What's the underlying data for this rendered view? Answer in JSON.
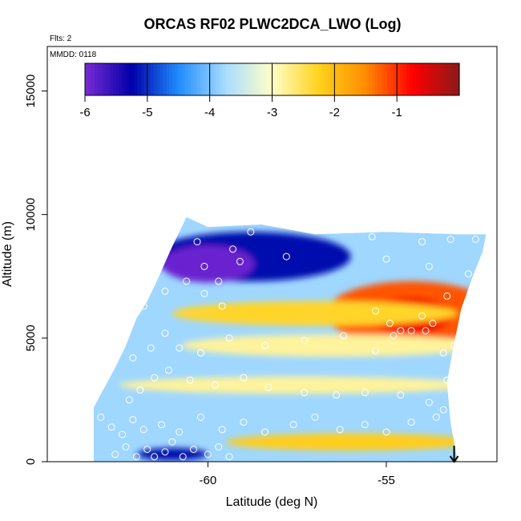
{
  "chart_data": {
    "type": "heatmap",
    "title": "ORCAS RF02 PLWC2DCA_LWO (Log)",
    "annotations": {
      "flights": "Flts: 2",
      "date": "MMDD: 0118"
    },
    "xlabel": "Latitude (deg N)",
    "ylabel": "Altitude (m)",
    "xlim": [
      -64.5,
      -51.9
    ],
    "ylim": [
      0,
      16800
    ],
    "x_ticks": [
      -60,
      -55
    ],
    "x_tick_labels": [
      "-60",
      "-55"
    ],
    "y_ticks": [
      0,
      5000,
      10000,
      15000
    ],
    "y_tick_labels": [
      "0",
      "5000",
      "10000",
      "15000"
    ],
    "colorbar": {
      "range": [
        -6,
        0
      ],
      "ticks": [
        -6,
        -5,
        -4,
        -3,
        -2,
        -1
      ],
      "tick_labels": [
        "-6",
        "-5",
        "-4",
        "-3",
        "-2",
        "-1"
      ],
      "colors": [
        "#7B2AD6",
        "#0000A8",
        "#1F8CFF",
        "#A8DCFF",
        "#FFFFC8",
        "#FFD21E",
        "#FF8C00",
        "#FF0000",
        "#8B1A1A"
      ]
    },
    "data_envelope": {
      "bottom_altitude": 0,
      "top_edge": [
        {
          "lat": -63.2,
          "alt": 2200
        },
        {
          "lat": -62.6,
          "alt": 3800
        },
        {
          "lat": -62.3,
          "alt": 4700
        },
        {
          "lat": -62.0,
          "alt": 5800
        },
        {
          "lat": -61.7,
          "alt": 6500
        },
        {
          "lat": -61.4,
          "alt": 7400
        },
        {
          "lat": -61.0,
          "alt": 8700
        },
        {
          "lat": -60.6,
          "alt": 9900
        },
        {
          "lat": -60.0,
          "alt": 9500
        },
        {
          "lat": -58.5,
          "alt": 9600
        },
        {
          "lat": -57.0,
          "alt": 9200
        },
        {
          "lat": -55.0,
          "alt": 9300
        },
        {
          "lat": -53.0,
          "alt": 9200
        },
        {
          "lat": -52.2,
          "alt": 9200
        },
        {
          "lat": -52.3,
          "alt": 8500
        },
        {
          "lat": -52.6,
          "alt": 7400
        },
        {
          "lat": -52.9,
          "alt": 6200
        },
        {
          "lat": -53.1,
          "alt": 4800
        },
        {
          "lat": -53.3,
          "alt": 3200
        },
        {
          "lat": -53.2,
          "alt": 1600
        },
        {
          "lat": -53.0,
          "alt": 0
        }
      ]
    },
    "features": [
      {
        "name": "dry upper band",
        "lat": -58.8,
        "alt": 8300,
        "value": -5.2,
        "width_deg": 5.6,
        "height_m": 2000
      },
      {
        "name": "driest core",
        "lat": -60.0,
        "alt": 8000,
        "value": -5.9,
        "width_deg": 2.6,
        "height_m": 1500
      },
      {
        "name": "moist layer",
        "lat": -54.3,
        "alt": 6000,
        "value": -1.2,
        "width_deg": 4.8,
        "height_m": 2600
      },
      {
        "name": "moist core",
        "lat": -54.3,
        "alt": 5900,
        "value": -0.7,
        "width_deg": 2.2,
        "height_m": 1500
      },
      {
        "name": "tongue",
        "lat": -57.0,
        "alt": 6000,
        "value": -2.3,
        "width_deg": 8.0,
        "height_m": 1000
      },
      {
        "name": "mid band",
        "lat": -56.5,
        "alt": 4700,
        "value": -2.8,
        "width_deg": 8.5,
        "height_m": 900
      },
      {
        "name": "lower band",
        "lat": -57.5,
        "alt": 3100,
        "value": -2.8,
        "width_deg": 10.0,
        "height_m": 700
      },
      {
        "name": "boundary layer",
        "lat": -56.0,
        "alt": 800,
        "value": -2.2,
        "width_deg": 7.0,
        "height_m": 700
      },
      {
        "name": "surface dry",
        "lat": -61.0,
        "alt": 300,
        "value": -5.2,
        "width_deg": 2.0,
        "height_m": 500
      }
    ],
    "sample_points": [
      [
        -62.6,
        300
      ],
      [
        -62.3,
        600
      ],
      [
        -62.0,
        200
      ],
      [
        -61.7,
        500
      ],
      [
        -61.5,
        200
      ],
      [
        -61.2,
        400
      ],
      [
        -61.0,
        800
      ],
      [
        -60.7,
        200
      ],
      [
        -60.4,
        500
      ],
      [
        -60.0,
        300
      ],
      [
        -59.7,
        600
      ],
      [
        -59.4,
        200
      ],
      [
        -63.0,
        1800
      ],
      [
        -62.7,
        1400
      ],
      [
        -62.4,
        1100
      ],
      [
        -62.1,
        1700
      ],
      [
        -61.8,
        1300
      ],
      [
        -61.3,
        1500
      ],
      [
        -60.8,
        1200
      ],
      [
        -60.2,
        1800
      ],
      [
        -59.6,
        1300
      ],
      [
        -59.0,
        1600
      ],
      [
        -58.4,
        1200
      ],
      [
        -57.6,
        1500
      ],
      [
        -57.0,
        1800
      ],
      [
        -56.3,
        1300
      ],
      [
        -55.6,
        1500
      ],
      [
        -55.0,
        1200
      ],
      [
        -54.3,
        1600
      ],
      [
        -53.6,
        1800
      ],
      [
        -62.2,
        2500
      ],
      [
        -61.9,
        2900
      ],
      [
        -61.5,
        3400
      ],
      [
        -61.1,
        3700
      ],
      [
        -60.5,
        3300
      ],
      [
        -59.8,
        3100
      ],
      [
        -59.0,
        3400
      ],
      [
        -58.3,
        3000
      ],
      [
        -57.3,
        2800
      ],
      [
        -56.4,
        2700
      ],
      [
        -55.6,
        2800
      ],
      [
        -54.6,
        2700
      ],
      [
        -53.8,
        2400
      ],
      [
        -53.3,
        3300
      ],
      [
        -53.4,
        2100
      ],
      [
        -62.1,
        4200
      ],
      [
        -61.6,
        4600
      ],
      [
        -61.2,
        5200
      ],
      [
        -60.8,
        4600
      ],
      [
        -60.2,
        4400
      ],
      [
        -59.4,
        5000
      ],
      [
        -58.4,
        4700
      ],
      [
        -57.3,
        4900
      ],
      [
        -56.2,
        5100
      ],
      [
        -55.3,
        4500
      ],
      [
        -54.8,
        5100
      ],
      [
        -53.9,
        5300
      ],
      [
        -53.4,
        4400
      ],
      [
        -53.1,
        4700
      ],
      [
        -61.8,
        6300
      ],
      [
        -61.2,
        6900
      ],
      [
        -60.6,
        7300
      ],
      [
        -60.1,
        6800
      ],
      [
        -59.6,
        6300
      ],
      [
        -55.3,
        6100
      ],
      [
        -54.9,
        5600
      ],
      [
        -54.6,
        5300
      ],
      [
        -54.3,
        5300
      ],
      [
        -54.0,
        5900
      ],
      [
        -53.7,
        5600
      ],
      [
        -53.3,
        6700
      ],
      [
        -52.7,
        6300
      ],
      [
        -52.5,
        6900
      ],
      [
        -61.0,
        9900
      ],
      [
        -60.3,
        8900
      ],
      [
        -60.1,
        7900
      ],
      [
        -59.7,
        7300
      ],
      [
        -59.3,
        8600
      ],
      [
        -59.1,
        8100
      ],
      [
        -58.8,
        9300
      ],
      [
        -57.8,
        8300
      ],
      [
        -55.4,
        9100
      ],
      [
        -55.0,
        8200
      ],
      [
        -54.0,
        8900
      ],
      [
        -53.8,
        7900
      ],
      [
        -53.2,
        9000
      ],
      [
        -52.5,
        9000
      ],
      [
        -52.7,
        7600
      ]
    ],
    "marker": {
      "lat": -53.1,
      "alt": 0
    }
  }
}
